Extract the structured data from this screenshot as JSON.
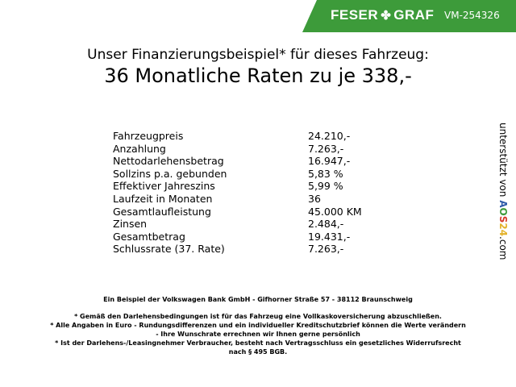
{
  "banner": {
    "brand_left": "FESER",
    "brand_right": "GRAF",
    "vehicle_id": "VM-254326",
    "color": "#3d9b3a"
  },
  "title": {
    "line1": "Unser Finanzierungsbeispiel* für dieses Fahrzeug:",
    "line2": "36 Monatliche Raten zu je 338,-"
  },
  "rows": [
    {
      "label": "Fahrzeugpreis",
      "value": "24.210,-"
    },
    {
      "label": "Anzahlung",
      "value": "7.263,-"
    },
    {
      "label": "Nettodarlehensbetrag",
      "value": "16.947,-"
    },
    {
      "label": "Sollzins p.a. gebunden",
      "value": "5,83 %"
    },
    {
      "label": "Effektiver Jahreszins",
      "value": "5,99 %"
    },
    {
      "label": "Laufzeit in Monaten",
      "value": "36"
    },
    {
      "label": "Gesamtlaufleistung",
      "value": "45.000 KM"
    },
    {
      "label": "Zinsen",
      "value": "2.484,-"
    },
    {
      "label": "Gesamtbetrag",
      "value": "19.431,-"
    },
    {
      "label": "Schlussrate (37. Rate)",
      "value": "7.263,-"
    }
  ],
  "side": {
    "text": "unterstützt von ",
    "logo": "AOS24",
    "suffix": ".com"
  },
  "footer": {
    "bank": "Ein Beispiel der Volkswagen Bank GmbH - Gifhorner Straße 57 - 38112 Braunschweig",
    "note1": "* Gemäß den Darlehensbedingungen ist für das Fahrzeug eine Vollkaskoversicherung abzuschließen.",
    "note2a": "* Alle Angaben in Euro - Rundungsdifferenzen und ein individueller Kreditschutzbrief können die Werte verändern",
    "note2b": "- Ihre Wunschrate errechnen wir Ihnen gerne persönlich",
    "note3a": "* Ist der Darlehens-/Leasingnehmer Verbraucher, besteht nach Vertragsschluss ein gesetzliches Widerrufsrecht",
    "note3b": "nach § 495 BGB."
  }
}
